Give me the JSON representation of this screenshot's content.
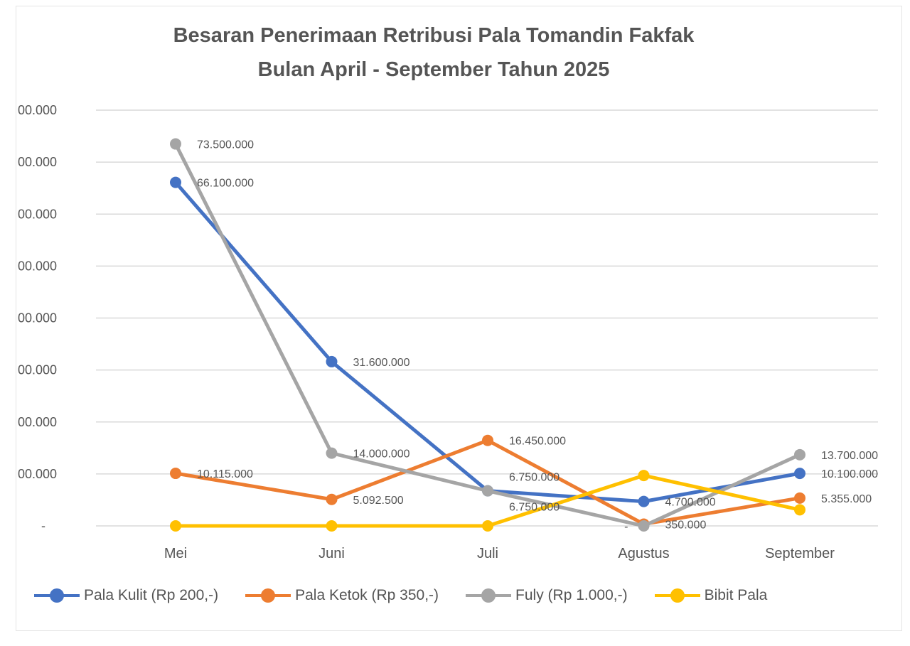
{
  "chart_data": {
    "type": "line",
    "title": "Besaran Penerimaan Retribusi Pala Tomandin Fakfak",
    "subtitle": "Bulan April - September Tahun 2025",
    "categories": [
      "Mei",
      "Juni",
      "Juli",
      "Agustus",
      "September"
    ],
    "ytick_labels": [
      "-",
      "00.000",
      "00.000",
      "00.000",
      "00.000",
      "00.000",
      "00.000",
      "00.000",
      "00.000"
    ],
    "ylim": [
      0,
      80000000
    ],
    "ytick_step": 10000000,
    "grid": true,
    "legend_position": "bottom",
    "series": [
      {
        "name": "Pala Kulit (Rp 200,-)",
        "color": "#4472c4",
        "values": [
          66100000,
          31600000,
          6750000,
          4700000,
          10100000
        ],
        "labels": [
          "66.100.000",
          "31.600.000",
          "6.750.000",
          "4.700.000",
          "10.100.000"
        ]
      },
      {
        "name": "Pala Ketok (Rp 350,-)",
        "color": "#ed7d31",
        "values": [
          10115000,
          5092500,
          16450000,
          350000,
          5355000
        ],
        "labels": [
          "10.115.000",
          "5.092.500",
          "16.450.000",
          "350.000",
          "5.355.000"
        ]
      },
      {
        "name": "Fuly (Rp 1.000,-)",
        "color": "#a5a5a5",
        "values": [
          73500000,
          14000000,
          6750000,
          0,
          13700000
        ],
        "labels": [
          "73.500.000",
          "14.000.000",
          "6.750.000",
          "-",
          "13.700.000"
        ]
      },
      {
        "name": "Bibit Pala",
        "color": "#ffc000",
        "values": [
          0,
          0,
          0,
          9700000,
          3100000
        ],
        "labels": []
      }
    ]
  }
}
